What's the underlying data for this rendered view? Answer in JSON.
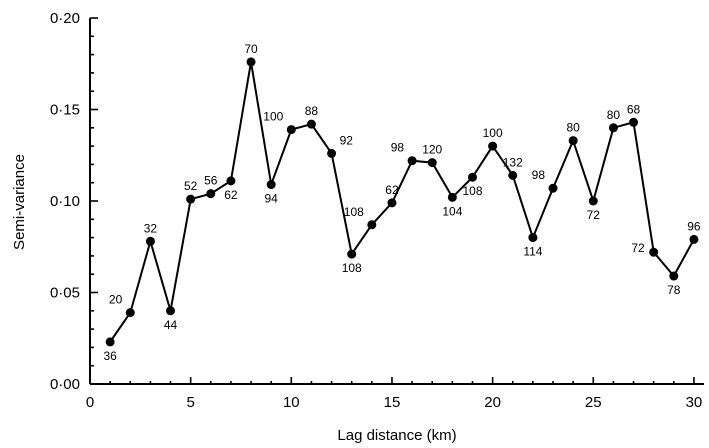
{
  "chart_data": {
    "type": "line",
    "title": "",
    "xlabel": "Lag distance (km)",
    "ylabel": "Semi-variance",
    "xlim": [
      0,
      30.5
    ],
    "ylim": [
      0,
      0.2
    ],
    "x_ticks": [
      0,
      5,
      10,
      15,
      20,
      25,
      30
    ],
    "x_tick_labels": [
      "0",
      "5",
      "10",
      "15",
      "20",
      "25",
      "30"
    ],
    "y_ticks": [
      0,
      0.05,
      0.1,
      0.15,
      0.2
    ],
    "y_tick_labels": [
      "0·00",
      "0·05",
      "0·10",
      "0·15",
      "0·20"
    ],
    "grid": false,
    "series": [
      {
        "points": [
          {
            "x": 1,
            "y": 0.023,
            "label": "36",
            "label_pos": "below"
          },
          {
            "x": 2,
            "y": 0.039,
            "label": "20",
            "label_pos": "above-left"
          },
          {
            "x": 3,
            "y": 0.078,
            "label": "32",
            "label_pos": "above"
          },
          {
            "x": 4,
            "y": 0.04,
            "label": "44",
            "label_pos": "below"
          },
          {
            "x": 5,
            "y": 0.101,
            "label": "52",
            "label_pos": "above"
          },
          {
            "x": 6,
            "y": 0.104,
            "label": "56",
            "label_pos": "above"
          },
          {
            "x": 7,
            "y": 0.111,
            "label": "62",
            "label_pos": "below"
          },
          {
            "x": 8,
            "y": 0.176,
            "label": "70",
            "label_pos": "above"
          },
          {
            "x": 9,
            "y": 0.109,
            "label": "94",
            "label_pos": "below"
          },
          {
            "x": 10,
            "y": 0.139,
            "label": "100",
            "label_pos": "above-left"
          },
          {
            "x": 11,
            "y": 0.142,
            "label": "88",
            "label_pos": "above"
          },
          {
            "x": 12,
            "y": 0.126,
            "label": "92",
            "label_pos": "above-right"
          },
          {
            "x": 13,
            "y": 0.071,
            "label": "108",
            "label_pos": "below"
          },
          {
            "x": 14,
            "y": 0.087,
            "label": "108",
            "label_pos": "above-left"
          },
          {
            "x": 15,
            "y": 0.099,
            "label": "62",
            "label_pos": "above"
          },
          {
            "x": 16,
            "y": 0.122,
            "label": "98",
            "label_pos": "above-left"
          },
          {
            "x": 17,
            "y": 0.121,
            "label": "120",
            "label_pos": "above"
          },
          {
            "x": 18,
            "y": 0.102,
            "label": "104",
            "label_pos": "below"
          },
          {
            "x": 19,
            "y": 0.113,
            "label": "108",
            "label_pos": "below"
          },
          {
            "x": 20,
            "y": 0.13,
            "label": "100",
            "label_pos": "above"
          },
          {
            "x": 21,
            "y": 0.114,
            "label": "132",
            "label_pos": "above"
          },
          {
            "x": 22,
            "y": 0.08,
            "label": "114",
            "label_pos": "below"
          },
          {
            "x": 23,
            "y": 0.107,
            "label": "98",
            "label_pos": "above-left"
          },
          {
            "x": 24,
            "y": 0.133,
            "label": "80",
            "label_pos": "above"
          },
          {
            "x": 25,
            "y": 0.1,
            "label": "72",
            "label_pos": "below"
          },
          {
            "x": 26,
            "y": 0.14,
            "label": "80",
            "label_pos": "above"
          },
          {
            "x": 27,
            "y": 0.143,
            "label": "68",
            "label_pos": "above"
          },
          {
            "x": 28,
            "y": 0.072,
            "label": "72",
            "label_pos": "left"
          },
          {
            "x": 29,
            "y": 0.059,
            "label": "78",
            "label_pos": "below"
          },
          {
            "x": 30,
            "y": 0.079,
            "label": "96",
            "label_pos": "above"
          }
        ]
      }
    ]
  }
}
